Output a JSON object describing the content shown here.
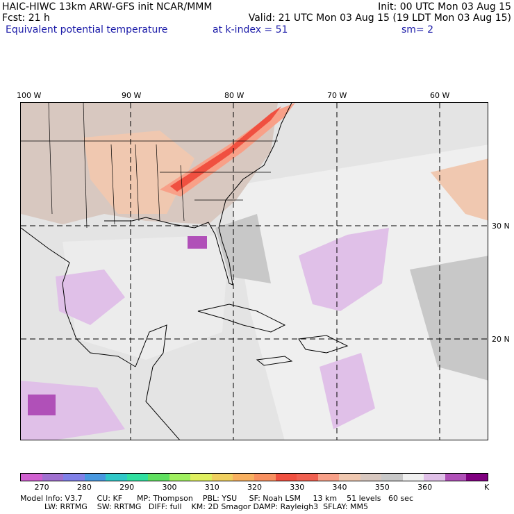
{
  "header": {
    "line1_left": "HAIC-HIWC 13km ARW-GFS init   NCAR/MMM",
    "line1_right": "Init: 00 UTC Mon 03 Aug 15",
    "line2_left": "Fcst:   21 h",
    "line2_right": "Valid: 21 UTC Mon 03 Aug 15 (19 LDT Mon 03 Aug 15)",
    "line3_left": "Equivalent potential temperature",
    "line3_mid": "at k-index =  51",
    "line3_right": "sm= 2"
  },
  "lon_labels": [
    "100 W",
    "90 W",
    "80 W",
    "70 W",
    "60 W"
  ],
  "lat_labels": [
    "30 N",
    "20 N"
  ],
  "colorbar": {
    "colors": [
      "#d060d0",
      "#a070d0",
      "#8080e8",
      "#4898e0",
      "#30c8c8",
      "#30e0a0",
      "#60e060",
      "#a0f060",
      "#e0f060",
      "#f0d060",
      "#f8b060",
      "#f89060",
      "#f05040",
      "#f06050",
      "#f8a088",
      "#f0c8b0",
      "#d8c8c0",
      "#c8c8c8",
      "#f0f0f0",
      "#e0c0e8",
      "#b050b8",
      "#800080"
    ],
    "ticks": [
      "270",
      "280",
      "290",
      "300",
      "310",
      "320",
      "330",
      "340",
      "350",
      "360"
    ],
    "unit": "K"
  },
  "footer": {
    "line1": "Model Info: V3.7      CU: KF      MP: Thompson    PBL: YSU     SF: Noah LSM     13 km    51 levels   60 sec",
    "line2": "          LW: RRTMG    SW: RRTMG   DIFF: full    KM: 2D Smagor DAMP: Rayleigh3  SFLAY: MM5"
  }
}
